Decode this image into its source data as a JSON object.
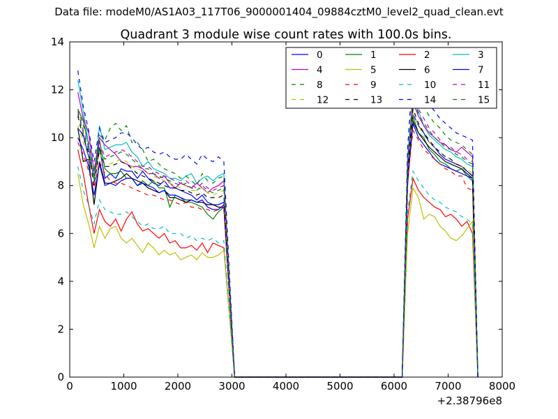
{
  "figure": {
    "suptitle": "Data file: modeM0/AS1A03_117T06_9000001404_09884cztM0_level2_quad_clean.evt"
  },
  "chart_data": {
    "type": "line",
    "title": "Quadrant 3 module wise count rates with 100.0s bins.",
    "xlabel": "",
    "ylabel": "",
    "x_offset_label": "+2.38796e8",
    "xlim": [
      0,
      8000
    ],
    "ylim": [
      0,
      14
    ],
    "xticks": [
      0,
      1000,
      2000,
      3000,
      4000,
      5000,
      6000,
      7000,
      8000
    ],
    "xtick_labels": [
      "0",
      "1000",
      "2000",
      "3000",
      "4000",
      "5000",
      "6000",
      "7000",
      "8000"
    ],
    "yticks": [
      0,
      2,
      4,
      6,
      8,
      10,
      12,
      14
    ],
    "ytick_labels": [
      "0",
      "2",
      "4",
      "6",
      "8",
      "10",
      "12",
      "14"
    ],
    "grid": false,
    "legend_position": "top-right",
    "legend_columns": 4,
    "segments": [
      {
        "x_start": 150,
        "x_step": 100,
        "count": 28,
        "drop_to": 3050
      },
      {
        "x_start": 6250,
        "x_step": 100,
        "count": 13,
        "drop_to": 7550
      }
    ],
    "series": [
      {
        "name": "0",
        "color": "#0000ff",
        "dash": "solid",
        "seg1": [
          10.4,
          10.1,
          9.2,
          8.4,
          9.6,
          8.3,
          8.5,
          8.3,
          8.7,
          8.6,
          8.6,
          8.3,
          8.6,
          8.3,
          8.1,
          8.0,
          8.2,
          7.9,
          7.9,
          7.8,
          7.7,
          7.6,
          7.4,
          7.6,
          7.3,
          7.2,
          7.2,
          7.3
        ],
        "seg2": [
          8.3,
          11.0,
          10.5,
          10.2,
          9.8,
          9.6,
          9.3,
          9.1,
          9.0,
          8.9,
          8.8,
          8.6,
          8.4
        ]
      },
      {
        "name": "1",
        "color": "#008000",
        "dash": "solid",
        "seg1": [
          11.2,
          10.7,
          9.7,
          8.2,
          9.9,
          8.7,
          8.5,
          8.5,
          8.6,
          8.3,
          8.3,
          8.0,
          8.2,
          8.0,
          8.2,
          7.9,
          7.9,
          7.1,
          7.6,
          7.5,
          7.3,
          7.3,
          7.2,
          7.1,
          6.8,
          6.6,
          6.9,
          7.1
        ],
        "seg2": [
          8.0,
          10.9,
          10.2,
          10.0,
          9.5,
          9.3,
          9.0,
          8.9,
          8.7,
          8.6,
          8.7,
          8.4,
          8.2
        ]
      },
      {
        "name": "2",
        "color": "#ff0000",
        "dash": "solid",
        "seg1": [
          9.5,
          8.5,
          7.2,
          6.0,
          7.0,
          6.5,
          6.3,
          6.6,
          6.1,
          6.6,
          6.9,
          6.4,
          6.1,
          6.2,
          6.0,
          5.8,
          6.0,
          5.6,
          5.7,
          5.4,
          5.4,
          5.5,
          5.3,
          5.6,
          5.2,
          5.6,
          5.5,
          5.4
        ],
        "seg2": [
          6.6,
          8.3,
          7.8,
          7.5,
          7.3,
          7.1,
          7.0,
          6.7,
          6.8,
          6.6,
          6.3,
          6.5,
          6.0
        ]
      },
      {
        "name": "3",
        "color": "#00bfbf",
        "dash": "solid",
        "seg1": [
          12.4,
          11.1,
          9.7,
          8.2,
          10.5,
          9.5,
          9.6,
          9.7,
          9.7,
          9.8,
          9.4,
          9.2,
          8.8,
          9.0,
          8.7,
          8.6,
          8.5,
          8.3,
          8.3,
          8.2,
          8.4,
          8.5,
          8.1,
          8.3,
          8.4,
          8.2,
          8.4,
          8.5
        ],
        "seg2": [
          9.2,
          11.7,
          11.1,
          10.5,
          10.1,
          9.9,
          9.7,
          9.5,
          9.4,
          9.2,
          9.1,
          8.9,
          8.8
        ]
      },
      {
        "name": "4",
        "color": "#bf00bf",
        "dash": "solid",
        "seg1": [
          11.9,
          10.8,
          10.2,
          8.6,
          10.0,
          9.7,
          9.5,
          9.3,
          9.0,
          8.9,
          8.8,
          8.8,
          8.7,
          8.5,
          8.5,
          8.3,
          8.4,
          8.1,
          7.9,
          8.1,
          8.0,
          7.9,
          8.1,
          7.9,
          7.7,
          7.9,
          8.0,
          8.2
        ],
        "seg2": [
          8.8,
          11.5,
          10.9,
          10.5,
          10.2,
          10.0,
          9.8,
          9.7,
          9.5,
          9.4,
          9.6,
          9.4,
          9.2
        ]
      },
      {
        "name": "5",
        "color": "#bfbf00",
        "dash": "solid",
        "seg1": [
          8.5,
          7.2,
          6.4,
          5.4,
          6.3,
          5.8,
          6.2,
          6.3,
          5.8,
          5.6,
          5.8,
          5.5,
          5.2,
          5.6,
          5.4,
          5.1,
          5.3,
          5.1,
          5.2,
          4.9,
          5.0,
          5.1,
          4.9,
          5.2,
          5.0,
          5.0,
          5.1,
          5.3
        ],
        "seg2": [
          6.0,
          7.9,
          7.5,
          6.6,
          6.8,
          6.7,
          6.3,
          6.1,
          5.8,
          5.7,
          5.9,
          6.2,
          6.5
        ]
      },
      {
        "name": "6",
        "color": "#000000",
        "dash": "solid",
        "seg1": [
          10.4,
          9.0,
          9.1,
          7.2,
          9.0,
          8.1,
          8.1,
          8.2,
          8.3,
          8.5,
          8.3,
          8.2,
          8.1,
          7.9,
          7.8,
          7.7,
          7.8,
          7.5,
          7.5,
          7.4,
          7.3,
          7.4,
          7.3,
          7.3,
          7.2,
          7.2,
          7.1,
          7.1
        ],
        "seg2": [
          8.1,
          10.7,
          10.2,
          9.9,
          9.6,
          9.4,
          9.2,
          9.0,
          8.9,
          8.8,
          8.7,
          8.5,
          8.3
        ]
      },
      {
        "name": "7",
        "color": "#0000ff",
        "dash": "solid",
        "seg1": [
          10.0,
          9.5,
          8.8,
          7.6,
          8.9,
          8.0,
          8.1,
          8.0,
          8.2,
          8.3,
          8.3,
          8.0,
          8.1,
          8.0,
          7.9,
          7.7,
          7.8,
          7.6,
          7.6,
          7.5,
          7.4,
          7.4,
          7.3,
          7.4,
          7.1,
          7.0,
          7.0,
          7.2
        ],
        "seg2": [
          8.2,
          10.6,
          10.0,
          9.7,
          9.4,
          9.1,
          8.9,
          8.8,
          8.7,
          8.6,
          8.5,
          8.4,
          8.3
        ]
      },
      {
        "name": "8",
        "color": "#008000",
        "dash": "dashed",
        "seg1": [
          11.2,
          10.5,
          9.8,
          8.6,
          10.1,
          9.9,
          10.4,
          10.6,
          10.3,
          10.5,
          9.8,
          9.8,
          9.5,
          9.0,
          9.1,
          8.9,
          8.7,
          8.6,
          8.5,
          8.3,
          8.4,
          8.2,
          8.0,
          8.5,
          8.2,
          8.1,
          8.3,
          8.4
        ],
        "seg2": [
          9.6,
          12.5,
          11.6,
          11.3,
          10.9,
          10.6,
          10.4,
          10.1,
          9.9,
          9.8,
          9.7,
          9.5,
          9.3
        ]
      },
      {
        "name": "9",
        "color": "#ff0000",
        "dash": "dashed",
        "seg1": [
          9.8,
          9.3,
          8.6,
          7.9,
          9.0,
          8.5,
          8.2,
          8.1,
          8.1,
          8.0,
          7.9,
          7.8,
          7.7,
          7.6,
          7.6,
          7.5,
          7.4,
          7.4,
          7.3,
          7.2,
          7.3,
          7.1,
          7.1,
          7.0,
          7.0,
          6.9,
          7.0,
          7.1
        ],
        "seg2": [
          8.2,
          10.3,
          9.9,
          9.5,
          9.3,
          9.1,
          8.9,
          8.7,
          8.6,
          8.4,
          8.4,
          7.9,
          7.8
        ]
      },
      {
        "name": "10",
        "color": "#00bfbf",
        "dash": "dashed",
        "seg1": [
          8.8,
          7.8,
          7.2,
          6.4,
          7.4,
          7.0,
          6.9,
          6.8,
          6.8,
          6.9,
          6.7,
          6.5,
          6.3,
          6.4,
          6.2,
          6.2,
          6.3,
          6.0,
          6.0,
          6.0,
          5.8,
          5.9,
          5.7,
          5.8,
          5.7,
          5.8,
          5.6,
          5.7
        ],
        "seg2": [
          6.9,
          8.6,
          8.2,
          7.9,
          7.6,
          7.4,
          7.3,
          7.1,
          7.0,
          6.9,
          6.7,
          6.6,
          6.4
        ]
      },
      {
        "name": "11",
        "color": "#bf00bf",
        "dash": "dashed",
        "seg1": [
          11.1,
          10.3,
          9.6,
          8.4,
          9.8,
          9.2,
          9.3,
          9.4,
          9.5,
          9.4,
          9.2,
          9.0,
          8.8,
          8.8,
          8.6,
          8.5,
          8.4,
          8.3,
          8.2,
          8.1,
          8.2,
          8.0,
          7.9,
          8.1,
          7.9,
          7.8,
          7.9,
          8.0
        ],
        "seg2": [
          9.0,
          11.8,
          11.2,
          10.8,
          10.4,
          10.2,
          9.9,
          9.7,
          9.6,
          9.4,
          9.3,
          9.1,
          9.0
        ]
      },
      {
        "name": "12",
        "color": "#bfbf00",
        "dash": "dashed",
        "seg1": [
          10.5,
          9.8,
          9.2,
          8.1,
          9.4,
          8.9,
          8.9,
          9.0,
          9.1,
          9.0,
          8.8,
          8.7,
          8.6,
          8.5,
          8.4,
          8.3,
          8.2,
          8.1,
          8.0,
          7.9,
          8.0,
          7.8,
          7.8,
          7.9,
          7.7,
          7.6,
          7.7,
          7.8
        ],
        "seg2": [
          8.7,
          11.0,
          10.5,
          10.1,
          9.8,
          9.6,
          9.4,
          9.2,
          9.1,
          8.9,
          8.8,
          8.7,
          8.5
        ]
      },
      {
        "name": "13",
        "color": "#000000",
        "dash": "dashed",
        "seg1": [
          10.9,
          10.0,
          9.4,
          8.0,
          9.5,
          8.8,
          8.8,
          8.9,
          9.0,
          8.9,
          8.7,
          8.5,
          8.4,
          8.3,
          8.2,
          8.1,
          8.0,
          7.9,
          7.9,
          7.8,
          7.8,
          7.7,
          7.6,
          7.7,
          7.5,
          7.5,
          7.5,
          7.6
        ],
        "seg2": [
          8.6,
          11.2,
          10.6,
          10.2,
          9.9,
          9.6,
          9.4,
          9.2,
          9.1,
          8.9,
          8.8,
          8.6,
          8.4
        ]
      },
      {
        "name": "14",
        "color": "#0000ff",
        "dash": "dashed",
        "seg1": [
          12.8,
          11.3,
          10.3,
          9.0,
          10.4,
          9.8,
          9.9,
          10.0,
          10.2,
          10.2,
          10.0,
          9.7,
          9.5,
          9.6,
          9.4,
          9.3,
          9.4,
          9.2,
          9.1,
          9.1,
          9.3,
          9.1,
          8.9,
          9.3,
          9.1,
          9.0,
          9.2,
          9.0
        ],
        "seg2": [
          9.5,
          12.9,
          12.2,
          11.7,
          11.4,
          11.1,
          10.8,
          10.6,
          10.4,
          10.2,
          10.1,
          10.0,
          9.9
        ]
      },
      {
        "name": "15",
        "color": "#008000",
        "dash": "dashed",
        "seg1": [
          11.0,
          10.2,
          9.5,
          8.3,
          9.6,
          9.1,
          9.2,
          9.3,
          9.4,
          9.3,
          9.1,
          8.9,
          8.7,
          8.7,
          8.5,
          8.4,
          8.3,
          8.2,
          8.1,
          8.0,
          8.1,
          7.9,
          7.8,
          8.0,
          7.8,
          7.7,
          7.8,
          7.9
        ],
        "seg2": [
          8.9,
          11.6,
          11.0,
          10.6,
          10.3,
          10.0,
          9.8,
          9.6,
          9.5,
          9.3,
          9.2,
          9.0,
          8.9
        ]
      }
    ]
  }
}
